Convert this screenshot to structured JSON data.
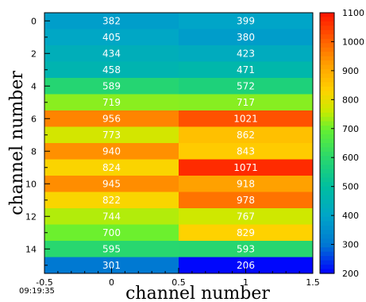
{
  "chart_data": {
    "type": "heatmap",
    "xlabel": "channel number",
    "ylabel": "channel number",
    "timestamp": "09:19:35",
    "x_range": [
      -0.5,
      1.5
    ],
    "y_range": [
      -0.5,
      15.5
    ],
    "x_ticks": [
      "-0.5",
      "0",
      "0.5",
      "1",
      "1.5"
    ],
    "y_ticks": [
      "0",
      "2",
      "4",
      "6",
      "8",
      "10",
      "12",
      "14"
    ],
    "columns": [
      0,
      1
    ],
    "rows": [
      0,
      1,
      2,
      3,
      4,
      5,
      6,
      7,
      8,
      9,
      10,
      11,
      12,
      13,
      14,
      15
    ],
    "values": [
      [
        382,
        399
      ],
      [
        405,
        380
      ],
      [
        434,
        423
      ],
      [
        458,
        471
      ],
      [
        589,
        572
      ],
      [
        719,
        717
      ],
      [
        956,
        1021
      ],
      [
        773,
        862
      ],
      [
        940,
        843
      ],
      [
        824,
        1071
      ],
      [
        945,
        918
      ],
      [
        822,
        978
      ],
      [
        744,
        767
      ],
      [
        700,
        829
      ],
      [
        595,
        593
      ],
      [
        301,
        206
      ]
    ],
    "colorbar": {
      "min": 200,
      "max": 1100,
      "ticks": [
        "200",
        "300",
        "400",
        "500",
        "600",
        "700",
        "800",
        "900",
        "1000",
        "1100"
      ]
    }
  }
}
